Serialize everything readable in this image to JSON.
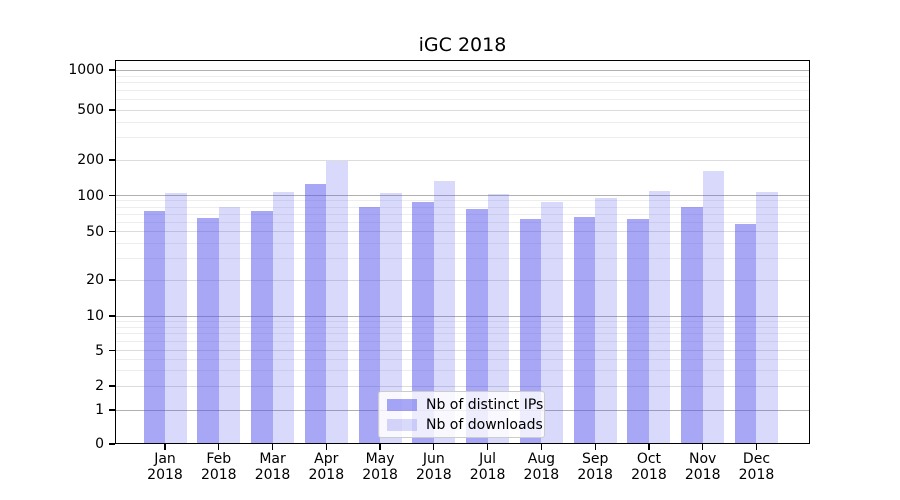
{
  "title": "iGC 2018",
  "colors": {
    "bar_ips": "rgba(80,80,238,0.50)",
    "bar_downloads": "rgba(80,80,238,0.22)",
    "grid_major": "#b0b0b0",
    "grid_mid": "#dcdcdc",
    "grid_minor": "#ededed",
    "axis": "#000000",
    "legend_border": "#cccccc"
  },
  "chart_data": {
    "type": "bar",
    "title": "iGC 2018",
    "categories": [
      "Jan 2018",
      "Feb 2018",
      "Mar 2018",
      "Apr 2018",
      "May 2018",
      "Jun 2018",
      "Jul 2018",
      "Aug 2018",
      "Sep 2018",
      "Oct 2018",
      "Nov 2018",
      "Dec 2018"
    ],
    "series": [
      {
        "name": "Nb of distinct IPs",
        "values": [
          74,
          65,
          74,
          125,
          80,
          88,
          77,
          64,
          66,
          63,
          80,
          58
        ]
      },
      {
        "name": "Nb of downloads",
        "values": [
          105,
          80,
          107,
          195,
          105,
          133,
          103,
          89,
          95,
          109,
          160,
          107
        ]
      }
    ],
    "xlabel": "",
    "ylabel": "",
    "yscale": "symlog",
    "ylim": [
      0,
      1200
    ],
    "yticks": [
      0,
      1,
      2,
      5,
      10,
      20,
      50,
      100,
      200,
      500,
      1000
    ],
    "gridlines": {
      "major": [
        1,
        10,
        100,
        1000
      ],
      "mid": [
        2,
        5,
        20,
        50,
        200,
        500
      ],
      "minor": [
        3,
        4,
        6,
        7,
        8,
        9,
        30,
        40,
        60,
        70,
        80,
        90,
        300,
        400,
        600,
        700,
        800,
        900
      ]
    },
    "grid": true,
    "legend_position": "inside lower-center"
  }
}
